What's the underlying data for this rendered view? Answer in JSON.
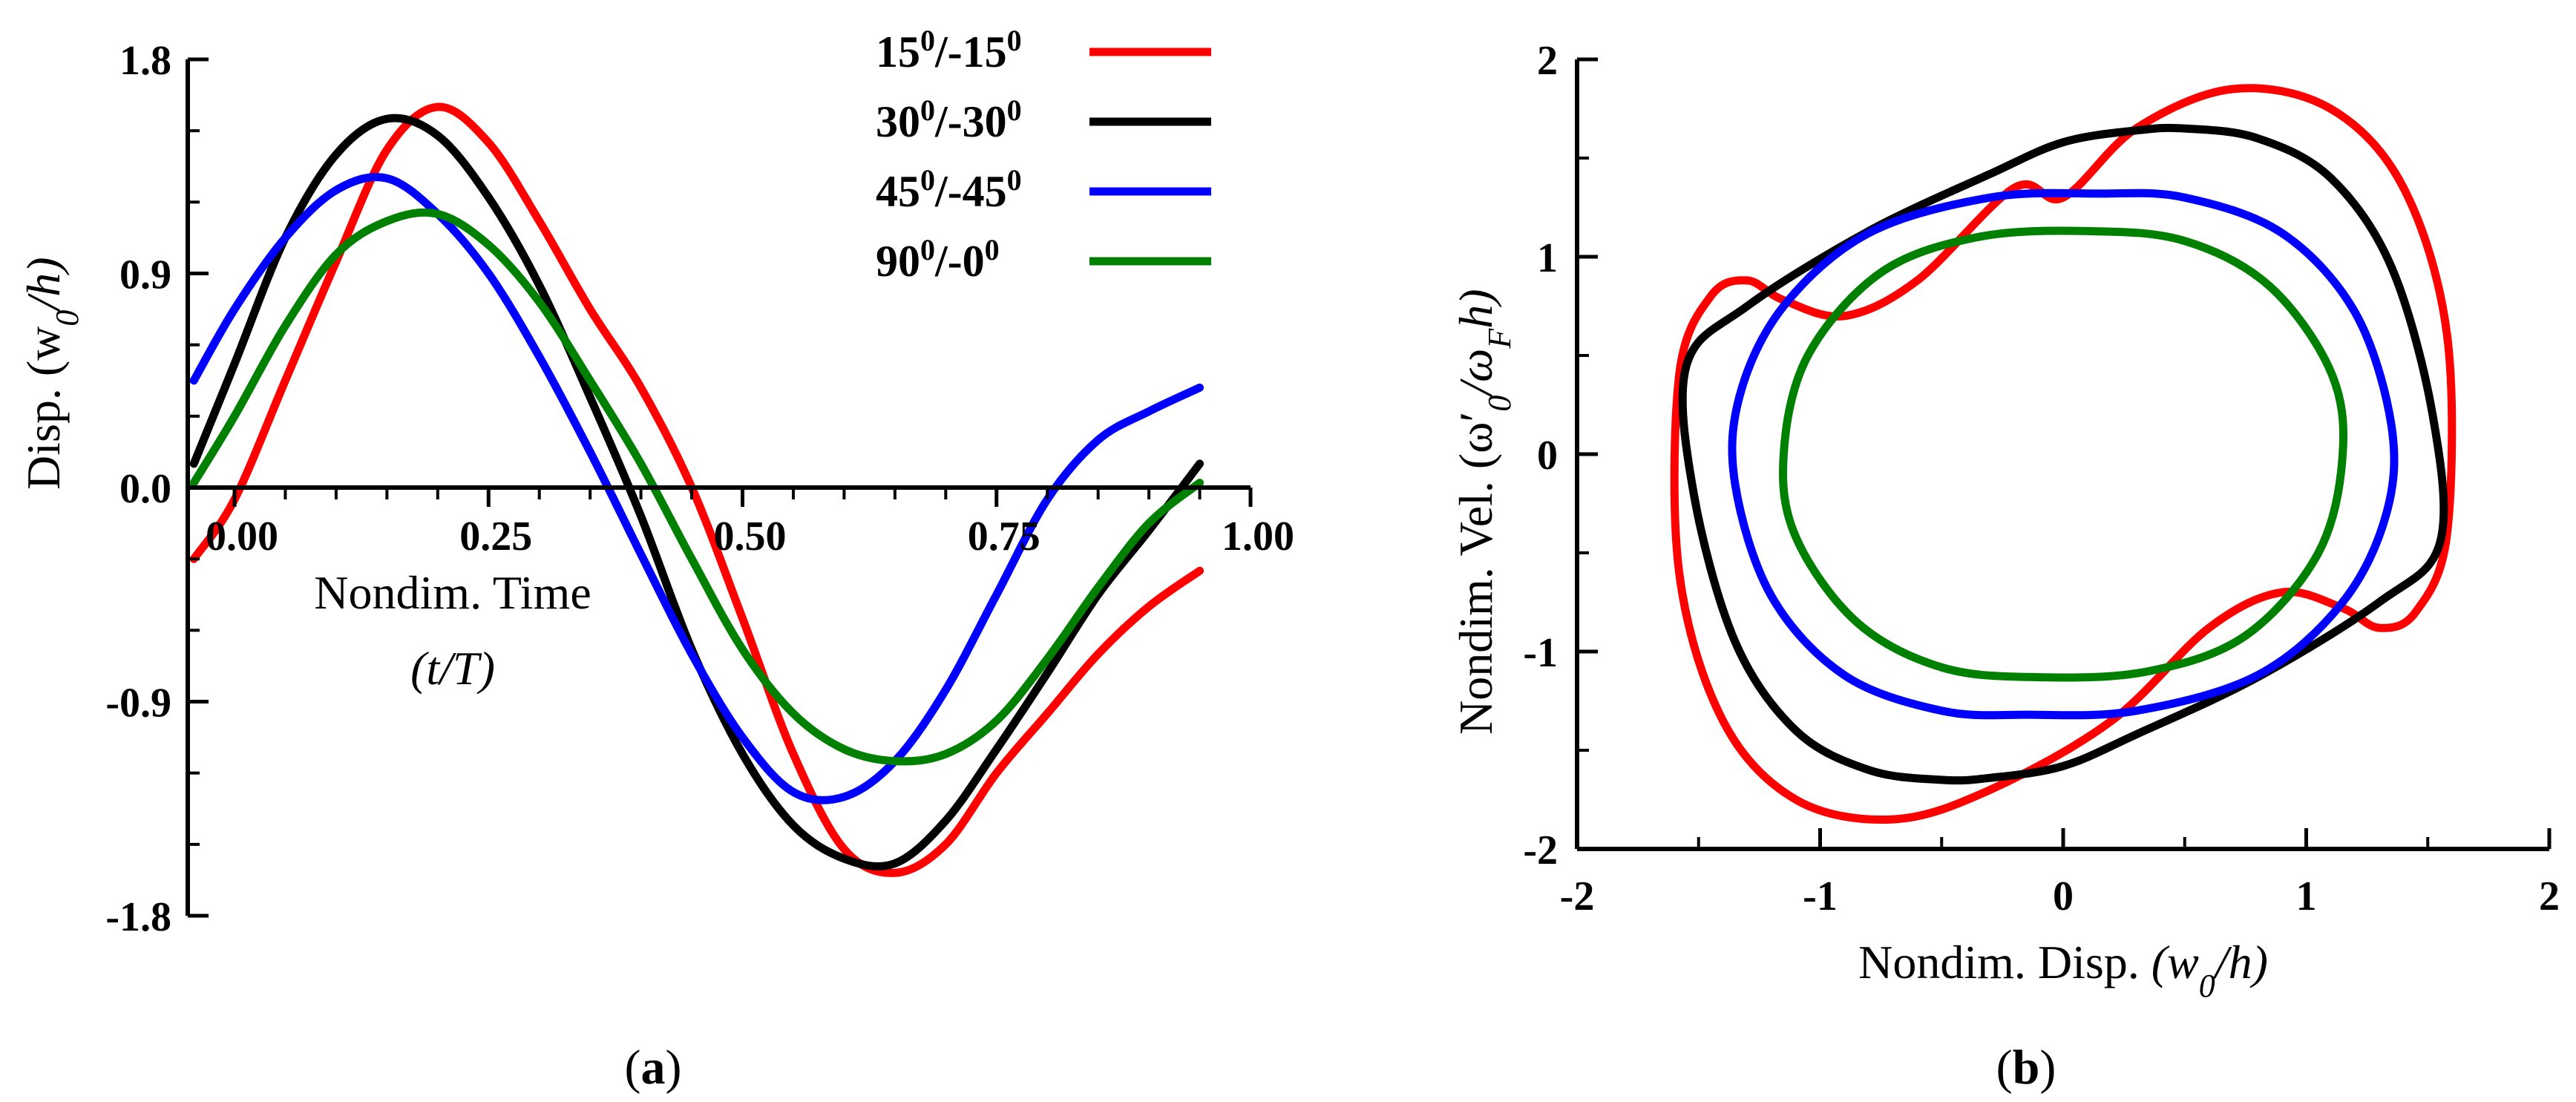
{
  "chart_data": [
    {
      "id": "a",
      "type": "line",
      "caption_letter": "a",
      "xlabel_line1": "Nondim. Time",
      "xlabel_line2": "(t/T)",
      "ylabel": "Disp. (w",
      "ylabel_sub": "0",
      "ylabel_end": "/h)",
      "xlim": [
        -0.04,
        1.0
      ],
      "ylim": [
        -1.8,
        1.8
      ],
      "xticks": [
        {
          "value": 0.0,
          "label": "0.00"
        },
        {
          "value": 0.25,
          "label": "0.25"
        },
        {
          "value": 0.5,
          "label": "0.50"
        },
        {
          "value": 0.75,
          "label": "0.75"
        },
        {
          "value": 1.0,
          "label": "1.00"
        }
      ],
      "yticks": [
        {
          "value": 1.8,
          "label": "1.8"
        },
        {
          "value": 0.9,
          "label": "0.9"
        },
        {
          "value": 0.0,
          "label": "0.0"
        },
        {
          "value": -0.9,
          "label": "-0.9"
        },
        {
          "value": -1.8,
          "label": "-1.8"
        }
      ],
      "series": [
        {
          "name": "15/-15",
          "color": "#ff0000",
          "points": [
            [
              -0.04,
              -0.3
            ],
            [
              0.0,
              -0.05
            ],
            [
              0.05,
              0.45
            ],
            [
              0.1,
              0.95
            ],
            [
              0.15,
              1.42
            ],
            [
              0.2,
              1.6
            ],
            [
              0.25,
              1.45
            ],
            [
              0.3,
              1.12
            ],
            [
              0.35,
              0.75
            ],
            [
              0.4,
              0.42
            ],
            [
              0.45,
              0.0
            ],
            [
              0.5,
              -0.55
            ],
            [
              0.55,
              -1.12
            ],
            [
              0.6,
              -1.52
            ],
            [
              0.65,
              -1.62
            ],
            [
              0.7,
              -1.5
            ],
            [
              0.75,
              -1.2
            ],
            [
              0.8,
              -0.95
            ],
            [
              0.85,
              -0.7
            ],
            [
              0.9,
              -0.5
            ],
            [
              0.95,
              -0.35
            ]
          ]
        },
        {
          "name": "30/-30",
          "color": "#000000",
          "points": [
            [
              -0.04,
              0.1
            ],
            [
              0.0,
              0.52
            ],
            [
              0.05,
              1.05
            ],
            [
              0.1,
              1.4
            ],
            [
              0.15,
              1.55
            ],
            [
              0.2,
              1.48
            ],
            [
              0.25,
              1.22
            ],
            [
              0.3,
              0.85
            ],
            [
              0.35,
              0.38
            ],
            [
              0.4,
              -0.12
            ],
            [
              0.45,
              -0.68
            ],
            [
              0.5,
              -1.12
            ],
            [
              0.55,
              -1.42
            ],
            [
              0.6,
              -1.56
            ],
            [
              0.65,
              -1.58
            ],
            [
              0.7,
              -1.4
            ],
            [
              0.75,
              -1.1
            ],
            [
              0.8,
              -0.78
            ],
            [
              0.85,
              -0.45
            ],
            [
              0.9,
              -0.18
            ],
            [
              0.95,
              0.1
            ]
          ]
        },
        {
          "name": "45/-45",
          "color": "#0000ff",
          "points": [
            [
              -0.04,
              0.45
            ],
            [
              0.0,
              0.75
            ],
            [
              0.05,
              1.05
            ],
            [
              0.1,
              1.25
            ],
            [
              0.15,
              1.3
            ],
            [
              0.2,
              1.15
            ],
            [
              0.25,
              0.9
            ],
            [
              0.3,
              0.55
            ],
            [
              0.35,
              0.15
            ],
            [
              0.4,
              -0.28
            ],
            [
              0.45,
              -0.7
            ],
            [
              0.5,
              -1.05
            ],
            [
              0.55,
              -1.28
            ],
            [
              0.6,
              -1.3
            ],
            [
              0.65,
              -1.15
            ],
            [
              0.7,
              -0.85
            ],
            [
              0.75,
              -0.45
            ],
            [
              0.8,
              -0.05
            ],
            [
              0.85,
              0.2
            ],
            [
              0.9,
              0.32
            ],
            [
              0.95,
              0.42
            ]
          ]
        },
        {
          "name": "90/-0",
          "color": "#008000",
          "points": [
            [
              -0.04,
              0.02
            ],
            [
              0.0,
              0.3
            ],
            [
              0.05,
              0.68
            ],
            [
              0.1,
              0.98
            ],
            [
              0.15,
              1.12
            ],
            [
              0.2,
              1.15
            ],
            [
              0.25,
              1.02
            ],
            [
              0.3,
              0.78
            ],
            [
              0.35,
              0.45
            ],
            [
              0.4,
              0.1
            ],
            [
              0.45,
              -0.3
            ],
            [
              0.5,
              -0.68
            ],
            [
              0.55,
              -0.95
            ],
            [
              0.6,
              -1.1
            ],
            [
              0.65,
              -1.15
            ],
            [
              0.7,
              -1.12
            ],
            [
              0.75,
              -0.98
            ],
            [
              0.8,
              -0.72
            ],
            [
              0.85,
              -0.42
            ],
            [
              0.9,
              -0.15
            ],
            [
              0.95,
              0.02
            ]
          ]
        }
      ],
      "legend": [
        {
          "a": "15",
          "b": "/-15",
          "c": "",
          "color": "#ff0000"
        },
        {
          "a": "30",
          "b": "/-30",
          "c": "",
          "color": "#000000"
        },
        {
          "a": "45",
          "b": "/-45",
          "c": "",
          "color": "#0000ff"
        },
        {
          "a": "90",
          "b": "/-0",
          "c": "",
          "color": "#008000"
        }
      ],
      "legend_superscript": "0",
      "legend_position": "top-right"
    },
    {
      "id": "b",
      "type": "line",
      "caption_letter": "b",
      "xlabel": "Nondim. Disp.",
      "xlabel_math_w": "(w",
      "xlabel_math_sub": "0",
      "xlabel_math_end": "/h)",
      "ylabel": "Nondim. Vel. (ω′",
      "ylabel_sub": "0",
      "ylabel_mid": "/ω",
      "ylabel_sub2": "F",
      "ylabel_end": "h)",
      "xlim": [
        -2,
        2
      ],
      "ylim": [
        -2,
        2
      ],
      "xticks": [
        {
          "value": -2,
          "label": "-2"
        },
        {
          "value": -1,
          "label": "-1"
        },
        {
          "value": 0,
          "label": "0"
        },
        {
          "value": 1,
          "label": "1"
        },
        {
          "value": 2,
          "label": "2"
        }
      ],
      "yticks": [
        {
          "value": 2,
          "label": "2"
        },
        {
          "value": 1,
          "label": "1"
        },
        {
          "value": 0,
          "label": "0"
        },
        {
          "value": -1,
          "label": "-1"
        },
        {
          "value": -2,
          "label": "-2"
        }
      ],
      "series": [
        {
          "name": "15/-15",
          "color": "#ff0000",
          "points": [
            [
              0,
              1.3
            ],
            [
              0.3,
              1.65
            ],
            [
              0.7,
              1.85
            ],
            [
              1.1,
              1.75
            ],
            [
              1.4,
              1.35
            ],
            [
              1.58,
              0.6
            ],
            [
              1.58,
              -0.4
            ],
            [
              1.45,
              -0.8
            ],
            [
              1.3,
              -0.88
            ],
            [
              1.15,
              -0.78
            ],
            [
              0.9,
              -0.7
            ],
            [
              0.6,
              -0.88
            ],
            [
              0.2,
              -1.35
            ],
            [
              -0.3,
              -1.7
            ],
            [
              -0.7,
              -1.85
            ],
            [
              -1.1,
              -1.75
            ],
            [
              -1.4,
              -1.35
            ],
            [
              -1.58,
              -0.6
            ],
            [
              -1.58,
              0.4
            ],
            [
              -1.45,
              0.8
            ],
            [
              -1.3,
              0.88
            ],
            [
              -1.15,
              0.78
            ],
            [
              -0.9,
              0.7
            ],
            [
              -0.6,
              0.88
            ],
            [
              -0.2,
              1.35
            ],
            [
              0,
              1.3
            ]
          ]
        },
        {
          "name": "30/-30",
          "color": "#000000",
          "points": [
            [
              0,
              1.58
            ],
            [
              0.3,
              1.64
            ],
            [
              0.5,
              1.65
            ],
            [
              0.8,
              1.6
            ],
            [
              1.1,
              1.4
            ],
            [
              1.35,
              0.95
            ],
            [
              1.52,
              0.2
            ],
            [
              1.55,
              -0.45
            ],
            [
              1.3,
              -0.75
            ],
            [
              0.8,
              -1.13
            ],
            [
              0.3,
              -1.42
            ],
            [
              0,
              -1.58
            ],
            [
              -0.3,
              -1.64
            ],
            [
              -0.5,
              -1.65
            ],
            [
              -0.8,
              -1.6
            ],
            [
              -1.1,
              -1.4
            ],
            [
              -1.35,
              -0.95
            ],
            [
              -1.52,
              -0.2
            ],
            [
              -1.55,
              0.45
            ],
            [
              -1.3,
              0.75
            ],
            [
              -0.8,
              1.13
            ],
            [
              -0.3,
              1.42
            ],
            [
              0,
              1.58
            ]
          ]
        },
        {
          "name": "45/-45",
          "color": "#0000ff",
          "points": [
            [
              0.15,
              1.32
            ],
            [
              0.5,
              1.3
            ],
            [
              0.9,
              1.12
            ],
            [
              1.2,
              0.72
            ],
            [
              1.35,
              0.15
            ],
            [
              1.33,
              -0.3
            ],
            [
              1.15,
              -0.75
            ],
            [
              0.8,
              -1.12
            ],
            [
              0.3,
              -1.3
            ],
            [
              -0.15,
              -1.32
            ],
            [
              -0.5,
              -1.3
            ],
            [
              -0.9,
              -1.12
            ],
            [
              -1.2,
              -0.72
            ],
            [
              -1.35,
              -0.15
            ],
            [
              -1.33,
              0.3
            ],
            [
              -1.15,
              0.75
            ],
            [
              -0.8,
              1.12
            ],
            [
              -0.3,
              1.3
            ],
            [
              0.15,
              1.32
            ]
          ]
        },
        {
          "name": "90/-0",
          "color": "#008000",
          "points": [
            [
              0.1,
              1.13
            ],
            [
              0.5,
              1.08
            ],
            [
              0.85,
              0.85
            ],
            [
              1.1,
              0.42
            ],
            [
              1.15,
              0.0
            ],
            [
              1.05,
              -0.5
            ],
            [
              0.75,
              -0.92
            ],
            [
              0.35,
              -1.1
            ],
            [
              -0.1,
              -1.13
            ],
            [
              -0.5,
              -1.08
            ],
            [
              -0.85,
              -0.85
            ],
            [
              -1.1,
              -0.42
            ],
            [
              -1.15,
              0.0
            ],
            [
              -1.05,
              0.5
            ],
            [
              -0.75,
              0.92
            ],
            [
              -0.35,
              1.1
            ],
            [
              0.1,
              1.13
            ]
          ]
        }
      ]
    }
  ]
}
